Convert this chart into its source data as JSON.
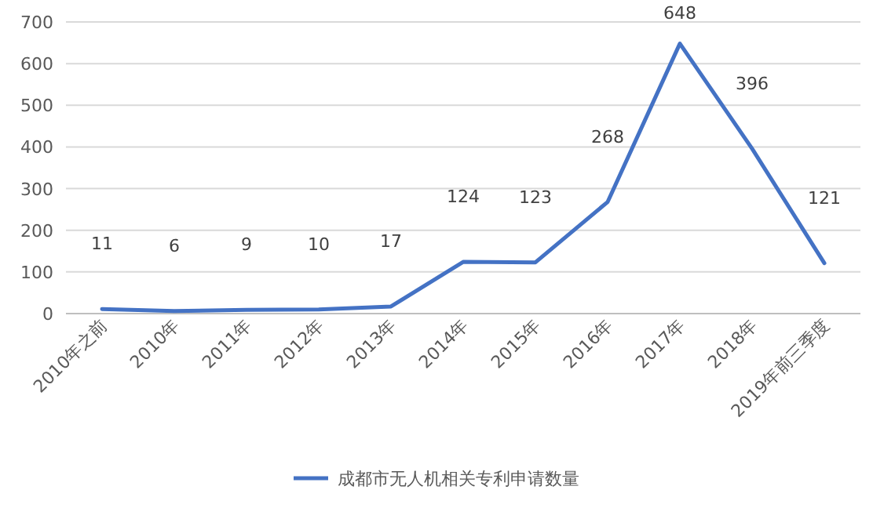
{
  "chart_data": {
    "type": "line",
    "categories": [
      "2010年之前",
      "2010年",
      "2011年",
      "2012年",
      "2013年",
      "2014年",
      "2015年",
      "2016年",
      "2017年",
      "2018年",
      "2019年前三季度"
    ],
    "series": [
      {
        "name": "成都市无人机相关专利申请数量",
        "color": "#4472c4",
        "values": [
          11,
          6,
          9,
          10,
          17,
          124,
          123,
          268,
          648,
          396,
          121
        ]
      }
    ],
    "ylim": [
      0,
      700
    ],
    "yticks": [
      0,
      100,
      200,
      300,
      400,
      500,
      600,
      700
    ],
    "grid": "y",
    "legend": "bottom",
    "data_labels": true,
    "marker": "none",
    "line_style": "solid"
  }
}
